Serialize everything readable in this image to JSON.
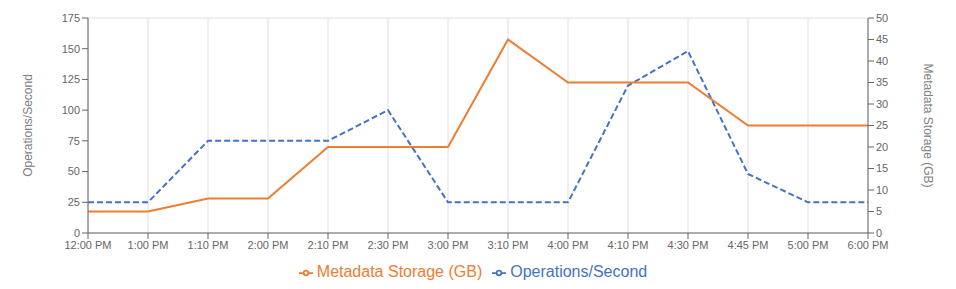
{
  "chart_data": {
    "type": "line",
    "categories": [
      "12:00 PM",
      "1:00 PM",
      "1:10 PM",
      "2:00 PM",
      "2:10 PM",
      "2:30 PM",
      "3:00 PM",
      "3:10 PM",
      "4:00 PM",
      "4:10 PM",
      "4:30 PM",
      "4:45 PM",
      "5:00 PM",
      "6:00 PM"
    ],
    "series": [
      {
        "name": "Operations/Second",
        "color": "#4472C4",
        "line_style": "dashed",
        "values": [
          25,
          25,
          75,
          75,
          75,
          100,
          25,
          25,
          25,
          120,
          148,
          48,
          25,
          25
        ]
      },
      {
        "name": "Metadata Storage (GB)",
        "color": "#ED7D31",
        "line_style": "solid",
        "axis": "y2",
        "values": [
          5,
          5,
          8,
          8,
          20,
          20,
          20,
          45,
          35,
          35,
          35,
          25,
          25,
          25
        ]
      }
    ],
    "ylabel": "Operations/Second",
    "y2label": "Metadata Storage (GB)",
    "ylim": [
      0,
      175
    ],
    "yticks": [
      0,
      25,
      50,
      75,
      100,
      125,
      150,
      175
    ],
    "y2lim": [
      0,
      50
    ],
    "y2ticks": [
      0,
      5,
      10,
      15,
      20,
      25,
      30,
      35,
      40,
      45,
      50
    ],
    "grid": true,
    "legend": "bottom"
  }
}
